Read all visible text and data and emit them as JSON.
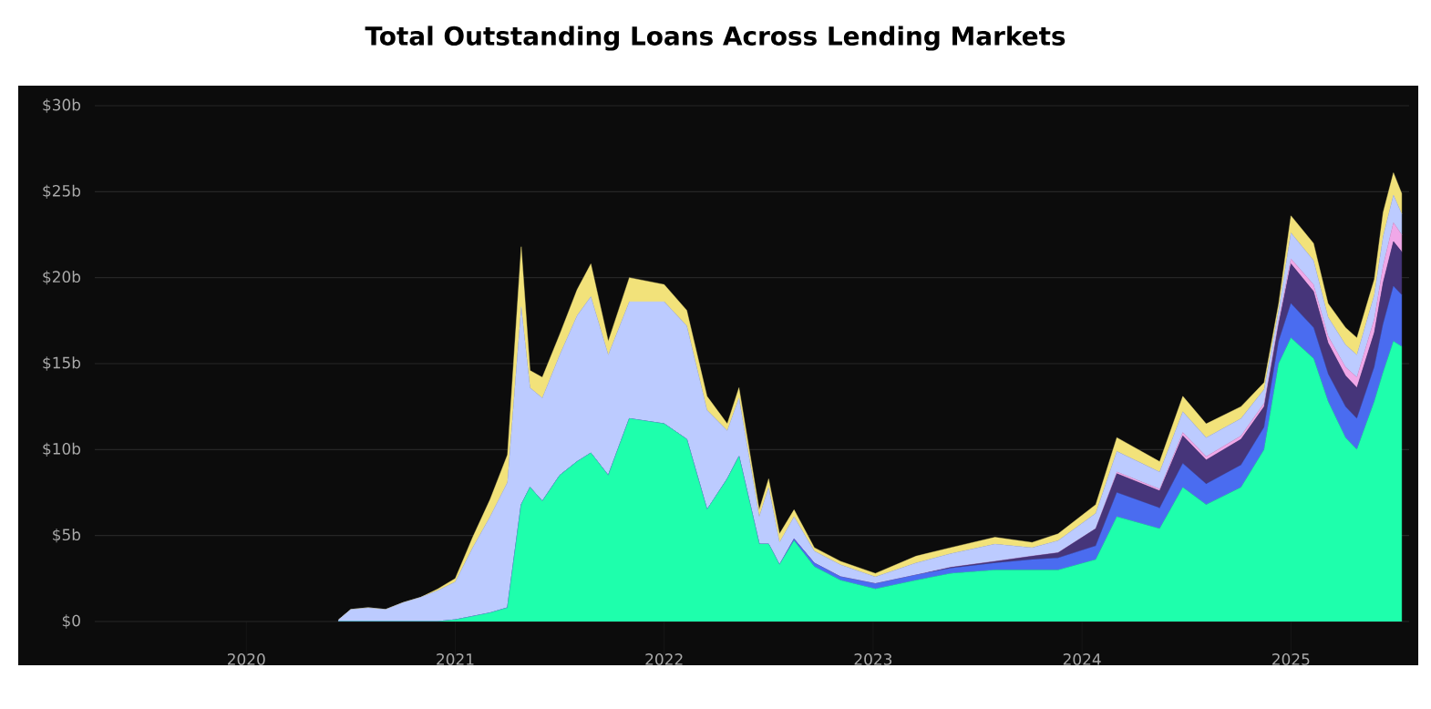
{
  "chart_data": {
    "type": "area",
    "stacked": true,
    "title": "Total Outstanding Loans Across Lending Markets",
    "x": [
      "2020-06-10",
      "2020-07-01",
      "2020-08-01",
      "2020-09-01",
      "2020-10-01",
      "2020-11-01",
      "2020-12-01",
      "2021-01-01",
      "2021-02-01",
      "2021-03-01",
      "2021-04-01",
      "2021-04-25",
      "2021-05-10",
      "2021-06-01",
      "2021-07-01",
      "2021-08-01",
      "2021-08-25",
      "2021-09-25",
      "2021-11-01",
      "2022-01-01",
      "2022-02-10",
      "2022-03-15",
      "2022-04-20",
      "2022-05-10",
      "2022-06-15",
      "2022-07-01",
      "2022-07-20",
      "2022-08-15",
      "2022-09-20",
      "2022-11-05",
      "2023-01-05",
      "2023-03-15",
      "2023-05-15",
      "2023-08-01",
      "2023-10-05",
      "2023-11-20",
      "2024-01-25",
      "2024-03-01",
      "2024-05-15",
      "2024-06-25",
      "2024-08-05",
      "2024-10-05",
      "2024-11-15",
      "2024-12-10",
      "2025-01-01",
      "2025-02-10",
      "2025-03-05",
      "2025-04-05",
      "2025-04-25",
      "2025-05-25",
      "2025-06-10",
      "2025-06-28",
      "2025-07-12"
    ],
    "series": [
      {
        "color": "#1effac",
        "values": [
          0,
          0,
          0,
          0,
          0,
          0,
          0,
          0.1,
          0.3,
          0.5,
          0.8,
          6.8,
          7.8,
          7.0,
          8.5,
          9.3,
          9.8,
          8.5,
          11.8,
          11.5,
          10.6,
          6.5,
          8.3,
          9.6,
          4.5,
          4.5,
          3.3,
          4.7,
          3.2,
          2.4,
          1.9,
          2.4,
          2.8,
          3.0,
          3.0,
          3.0,
          3.6,
          6.1,
          5.4,
          7.8,
          6.8,
          7.8,
          10.0,
          15.0,
          16.5,
          15.3,
          12.8,
          10.7,
          10.0,
          12.8,
          14.5,
          16.3,
          16.0
        ]
      },
      {
        "color": "#4a6cf0",
        "values": [
          0,
          0,
          0,
          0,
          0,
          0,
          0,
          0,
          0,
          0,
          0,
          0,
          0,
          0,
          0,
          0,
          0,
          0,
          0,
          0,
          0,
          0,
          0,
          0,
          0,
          0,
          0,
          0.1,
          0.2,
          0.2,
          0.3,
          0.3,
          0.3,
          0.4,
          0.6,
          0.7,
          0.8,
          1.4,
          1.2,
          1.4,
          1.2,
          1.3,
          1.3,
          1.3,
          2.0,
          1.8,
          1.6,
          1.8,
          1.8,
          2.0,
          2.8,
          3.2,
          3.0
        ]
      },
      {
        "color": "#46357a",
        "values": [
          0,
          0,
          0,
          0,
          0,
          0,
          0,
          0,
          0,
          0,
          0,
          0,
          0,
          0,
          0,
          0,
          0,
          0,
          0,
          0,
          0,
          0,
          0,
          0,
          0,
          0,
          0,
          0,
          0,
          0,
          0,
          0,
          0.05,
          0.1,
          0.2,
          0.3,
          1.0,
          1.1,
          1.0,
          1.6,
          1.4,
          1.5,
          1.2,
          1.0,
          2.3,
          2.1,
          1.8,
          1.8,
          1.8,
          2.0,
          2.4,
          2.6,
          2.5
        ]
      },
      {
        "color": "#f0a8e8",
        "values": [
          0,
          0,
          0,
          0,
          0,
          0,
          0,
          0,
          0,
          0,
          0,
          0,
          0,
          0,
          0,
          0,
          0,
          0,
          0,
          0,
          0,
          0,
          0,
          0,
          0,
          0,
          0,
          0,
          0,
          0,
          0,
          0,
          0,
          0,
          0,
          0,
          0,
          0.1,
          0.1,
          0.2,
          0.2,
          0.2,
          0.2,
          0.2,
          0.3,
          0.4,
          0.4,
          0.5,
          0.6,
          0.8,
          1.0,
          1.1,
          1.0
        ]
      },
      {
        "color": "#bccbff",
        "values": [
          0.1,
          0.7,
          0.8,
          0.7,
          1.1,
          1.4,
          1.8,
          2.2,
          4.0,
          5.6,
          7.3,
          11.5,
          5.8,
          6.0,
          7.0,
          8.5,
          9.1,
          7.0,
          6.8,
          7.1,
          6.6,
          5.8,
          2.8,
          3.4,
          1.6,
          3.3,
          1.3,
          1.3,
          0.7,
          0.7,
          0.4,
          0.7,
          0.8,
          1.0,
          0.5,
          0.7,
          0.9,
          1.2,
          1.0,
          1.2,
          1.1,
          1.0,
          0.8,
          0.6,
          1.5,
          1.4,
          1.1,
          1.3,
          1.3,
          1.4,
          1.7,
          1.6,
          1.2
        ]
      },
      {
        "color": "#f2e27a",
        "values": [
          0,
          0,
          0,
          0,
          0,
          0,
          0.1,
          0.2,
          0.6,
          1.0,
          1.6,
          3.5,
          1.0,
          1.2,
          1.2,
          1.5,
          1.9,
          0.8,
          1.4,
          1.0,
          0.9,
          0.8,
          0.4,
          0.6,
          0.4,
          0.5,
          0.5,
          0.4,
          0.2,
          0.2,
          0.2,
          0.4,
          0.35,
          0.4,
          0.3,
          0.4,
          0.5,
          0.8,
          0.6,
          0.9,
          0.8,
          0.7,
          0.4,
          0.4,
          1.0,
          1.0,
          0.8,
          1.0,
          1.0,
          0.9,
          1.4,
          1.3,
          1.2
        ]
      }
    ],
    "xlim": [
      "2019-04-10",
      "2025-07-25"
    ],
    "xticks": [
      "2020",
      "2021",
      "2022",
      "2023",
      "2024",
      "2025"
    ],
    "ylim": [
      0,
      30
    ],
    "yticks": [
      {
        "value": 0,
        "label": "$0"
      },
      {
        "value": 5,
        "label": "$5b"
      },
      {
        "value": 10,
        "label": "$10b"
      },
      {
        "value": 15,
        "label": "$15b"
      },
      {
        "value": 20,
        "label": "$20b"
      },
      {
        "value": 25,
        "label": "$25b"
      },
      {
        "value": 30,
        "label": "$30b"
      }
    ],
    "grid": "y"
  }
}
